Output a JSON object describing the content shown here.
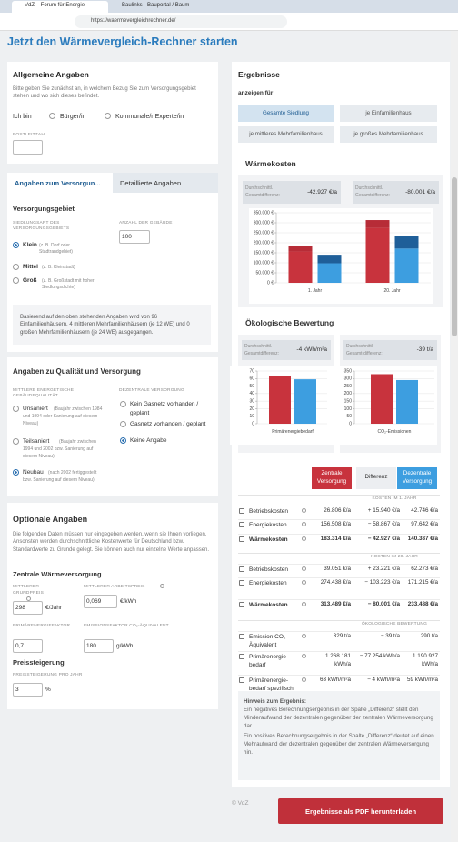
{
  "browser": {
    "tabs": [
      "VdZ – Forum für Energie",
      "Baulinks - Bauportal / Baum"
    ],
    "url": "https://waermevergleichrechner.de/"
  },
  "heading": "Jetzt den Wärmevergleich-Rechner starten",
  "general": {
    "title": "Allgemeine Angaben",
    "text": "Bitte geben Sie zunächst an, in welchem Bezug Sie zum Versorgungsgebiet stehen und wo sich dieses befindet.",
    "iam": "Ich bin",
    "options": [
      "Bürger/in",
      "Kommunale/r Experte/in"
    ],
    "zip_label": "POSTLEITZAHL"
  },
  "tabs": {
    "items": [
      "Angaben zum Versorgun...",
      "Detaillierte Angaben"
    ],
    "selected": 0
  },
  "supply": {
    "title": "Versorgungsgebiet",
    "settlement": {
      "label": "SIEDLUNGSART DES VERSORGUNGSGEBIETS",
      "selected": 0,
      "options": [
        {
          "label": "Klein",
          "note": "(z. B. Dorf oder Stadtrandgebiet)"
        },
        {
          "label": "Mittel",
          "note": "(z. B. Kleinstadt)"
        },
        {
          "label": "Groß",
          "note": "(z. B. Großstadt mit hoher Siedlungsdichte)"
        }
      ]
    },
    "buildings_label": "ANZAHL DER GEBÄUDE",
    "buildings_value": "100",
    "info": "Basierend auf den oben stehenden Angaben wird von 96 Einfamilienhäusern, 4 mittleren Mehrfamilienhäusern (je 12 WE) und 0 großen Mehrfamilienhäusern (je 24 WE) ausgegangen."
  },
  "quality": {
    "title": "Angaben zu Qualität und Versorgung",
    "building_quality": {
      "label": "MITTLERE ENERGETISCHE GEBÄUDEQUALITÄT",
      "selected": 2,
      "options": [
        {
          "label": "Unsaniert",
          "note": "(Baujahr zwischen 1984 und 1994 oder Sanierung auf diesem Niveau)"
        },
        {
          "label": "Teilsaniert",
          "note": "(Baujahr zwischen 1994 und 2002 bzw. Sanierung auf diesem Niveau)"
        },
        {
          "label": "Neubau",
          "note": "(nach 2002 fertiggestellt bzw. Sanierung auf diesem Niveau)"
        }
      ]
    },
    "decentral": {
      "label": "DEZENTRALE VERSORGUNG",
      "selected": 2,
      "options": [
        "Kein Gasnetz vorhanden / geplant",
        "Gasnetz vorhanden / geplant",
        "Keine Angabe"
      ]
    }
  },
  "optional": {
    "title": "Optionale Angaben",
    "text": "Die folgenden Daten müssen nur eingegeben werden, wenn sie Ihnen vorliegen. Ansonsten werden durchschnittliche Kostenwerte für Deutschland bzw. Standardwerte zu Grunde gelegt. Sie können auch nur einzelne Werte anpassen.",
    "central": "Zentrale Wärmeversorgung",
    "fields": [
      {
        "label": "MITTLERER GRUNDPREIS",
        "value": "298",
        "unit": "€/Jahr"
      },
      {
        "label": "MITTLERER ARBEITSPREIS",
        "value": "0,069",
        "unit": "€/kWh"
      },
      {
        "label": "PRIMÄRENERGIEFAKTOR",
        "value": "0,7"
      },
      {
        "label": "EMISSIONSFAKTOR CO₂-ÄQUIVALENT",
        "value": "180",
        "unit": "g/kWh"
      }
    ],
    "price_title": "Preissteigerung",
    "price_label": "PREISSTEIGERUNG PRO JAHR",
    "price_value": "3",
    "price_unit": "%"
  },
  "results": {
    "title": "Ergebnisse",
    "show_for": "anzeigen für",
    "buttons": [
      "Gesamte Siedlung",
      "je Einfamilienhaus",
      "je mittleres Mehrfamilienhaus",
      "je großes Mehrfamilienhaus"
    ],
    "selected": 0
  },
  "heat_costs": {
    "title": "Wärmekosten",
    "differences": [
      {
        "label": "Durchschnittl. Gesamtdifferenz:",
        "value": "-42.927 €/a"
      },
      {
        "label": "Durchschnittl. Gesamtdifferenz:",
        "value": "-80.001 €/a"
      }
    ],
    "chart": {
      "type": "bar",
      "categories": [
        "1. Jahr",
        "20. Jahr"
      ],
      "ylim": [
        0,
        350000
      ],
      "grid": true,
      "yticks": [
        {
          "value": 0,
          "label": "0 €"
        },
        {
          "value": 50000,
          "label": "50.000 €"
        },
        {
          "value": 100000,
          "label": "100.000 €"
        },
        {
          "value": 150000,
          "label": "150.000 €"
        },
        {
          "value": 200000,
          "label": "200.000 €"
        },
        {
          "value": 250000,
          "label": "250.000 €"
        },
        {
          "value": 300000,
          "label": "300.000 €"
        },
        {
          "value": 350000,
          "label": "350.000 €"
        }
      ],
      "stacks": [
        {
          "series": [
            {
              "color": "#c8333d",
              "values": [
                156508,
                274438
              ]
            },
            {
              "color": "#b72c37",
              "values": [
                26806,
                39051
              ]
            }
          ]
        },
        {
          "series": [
            {
              "color": "#3d9ee0",
              "values": [
                97642,
                171215
              ]
            },
            {
              "color": "#1f5f99",
              "values": [
                42746,
                62273
              ]
            }
          ]
        }
      ]
    }
  },
  "eco": {
    "title": "Ökologische Bewertung",
    "panels": [
      {
        "difference": {
          "label": "Durchschnittl. Gesamtdifferenz:",
          "value": "-4 kWh/m²a"
        },
        "chart": {
          "type": "bar",
          "categories": [
            "Primärenergiebedarf"
          ],
          "ylim": [
            0,
            70
          ],
          "yticks": [
            0,
            10,
            20,
            30,
            40,
            50,
            60,
            70
          ],
          "grid": true,
          "series": [
            {
              "color": "#c8333d",
              "values": [
                63
              ]
            },
            {
              "color": "#3d9ee0",
              "values": [
                59
              ]
            }
          ]
        }
      },
      {
        "difference": {
          "label": "Durchschnittl. Gesamt-differenz:",
          "value": "-39 t/a"
        },
        "chart": {
          "type": "bar",
          "categories": [
            "CO₂-Emissionen"
          ],
          "ylim": [
            0,
            350
          ],
          "yticks": [
            0,
            50,
            100,
            150,
            200,
            250,
            300,
            350
          ],
          "grid": true,
          "series": [
            {
              "color": "#c8333d",
              "values": [
                329
              ]
            },
            {
              "color": "#3d9ee0",
              "values": [
                290
              ]
            }
          ]
        }
      }
    ]
  },
  "table": {
    "headers": [
      "Zentrale Versorgung",
      "Differenz",
      "Dezentrale Versorgung"
    ],
    "sections": [
      {
        "title": "KOSTEN IM 1. JAHR",
        "rows": [
          {
            "label": "Betriebskosten",
            "values": [
              "26.806 €/a",
              "+ 15.940 €/a",
              "42.746 €/a"
            ]
          },
          {
            "label": "Energiekosten",
            "values": [
              "156.508 €/a",
              "− 58.867 €/a",
              "97.642 €/a"
            ]
          },
          {
            "label": "Wärmekosten",
            "values": [
              "183.314 €/a",
              "− 42.927 €/a",
              "140.387 €/a"
            ]
          }
        ]
      },
      {
        "title": "KOSTEN IM 20. JAHR",
        "rows": [
          {
            "label": "Betriebskosten",
            "values": [
              "39.051 €/a",
              "+ 23.221 €/a",
              "62.273 €/a"
            ]
          },
          {
            "label": "Energiekosten",
            "values": [
              "274.438 €/a",
              "− 103.223 €/a",
              "171.215 €/a"
            ]
          },
          {
            "label": "Wärmekosten",
            "values": [
              "313.489 €/a",
              "− 80.001 €/a",
              "233.488 €/a"
            ]
          }
        ]
      },
      {
        "title": "ÖKOLOGISCHE BEWERTUNG",
        "rows": [
          {
            "label": "Emission CO₂-Äquivalent",
            "values": [
              "329 t/a",
              "− 39 t/a",
              "290 t/a"
            ]
          },
          {
            "label": "Primärenergie-bedarf",
            "values": [
              "1.268.181 kWh/a",
              "− 77.254 kWh/a",
              "1.190.927 kWh/a"
            ]
          },
          {
            "label": "Primärenergie-bedarf spezifisch",
            "values": [
              "63 kWh/m²a",
              "− 4 kWh/m²a",
              "59 kWh/m²a"
            ]
          }
        ]
      }
    ]
  },
  "hint": {
    "title": "Hinweis zum Ergebnis:",
    "paragraphs": [
      "Ein negatives Berechnungsergebnis in der Spalte „Differenz“ stellt den Minderaufwand der dezentralen gegenüber der zentralen Wärmeversorgung dar.",
      "Ein positives Berechnungsergebnis in der Spalte „Differenz“ deutet auf einen Mehraufwand der dezentralen gegenüber der zentralen Wärmeversorgung hin."
    ]
  },
  "footer": "© VdZ",
  "pdf_button": "Ergebnisse als PDF herunterladen"
}
